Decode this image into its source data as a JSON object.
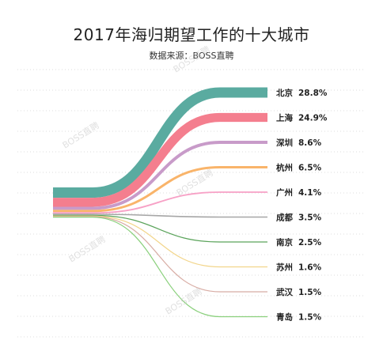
{
  "title": "2017年海归期望工作的十大城市",
  "subtitle": "数据来源：BOSS直聘",
  "watermark": "BOSS直聘",
  "chart_data": {
    "type": "sankey",
    "title": "2017年海归期望工作的十大城市",
    "subtitle": "数据来源：BOSS直聘",
    "unit": "%",
    "series": [
      {
        "name": "北京",
        "value": 28.8,
        "label": "28.8%",
        "color": "#5aaba0"
      },
      {
        "name": "上海",
        "value": 24.9,
        "label": "24.9%",
        "color": "#f47e8e"
      },
      {
        "name": "深圳",
        "value": 8.6,
        "label": "8.6%",
        "color": "#c89bc9"
      },
      {
        "name": "杭州",
        "value": 6.5,
        "label": "6.5%",
        "color": "#f9b46a"
      },
      {
        "name": "广州",
        "value": 4.1,
        "label": "4.1%",
        "color": "#f7a1c6"
      },
      {
        "name": "成都",
        "value": 3.5,
        "label": "3.5%",
        "color": "#a6a6a6"
      },
      {
        "name": "南京",
        "value": 2.5,
        "label": "2.5%",
        "color": "#5aa35a"
      },
      {
        "name": "苏州",
        "value": 1.6,
        "label": "1.6%",
        "color": "#f2d58a"
      },
      {
        "name": "武汉",
        "value": 1.5,
        "label": "1.5%",
        "color": "#d8aca4"
      },
      {
        "name": "青岛",
        "value": 1.5,
        "label": "1.5%",
        "color": "#8ad07c"
      }
    ]
  }
}
